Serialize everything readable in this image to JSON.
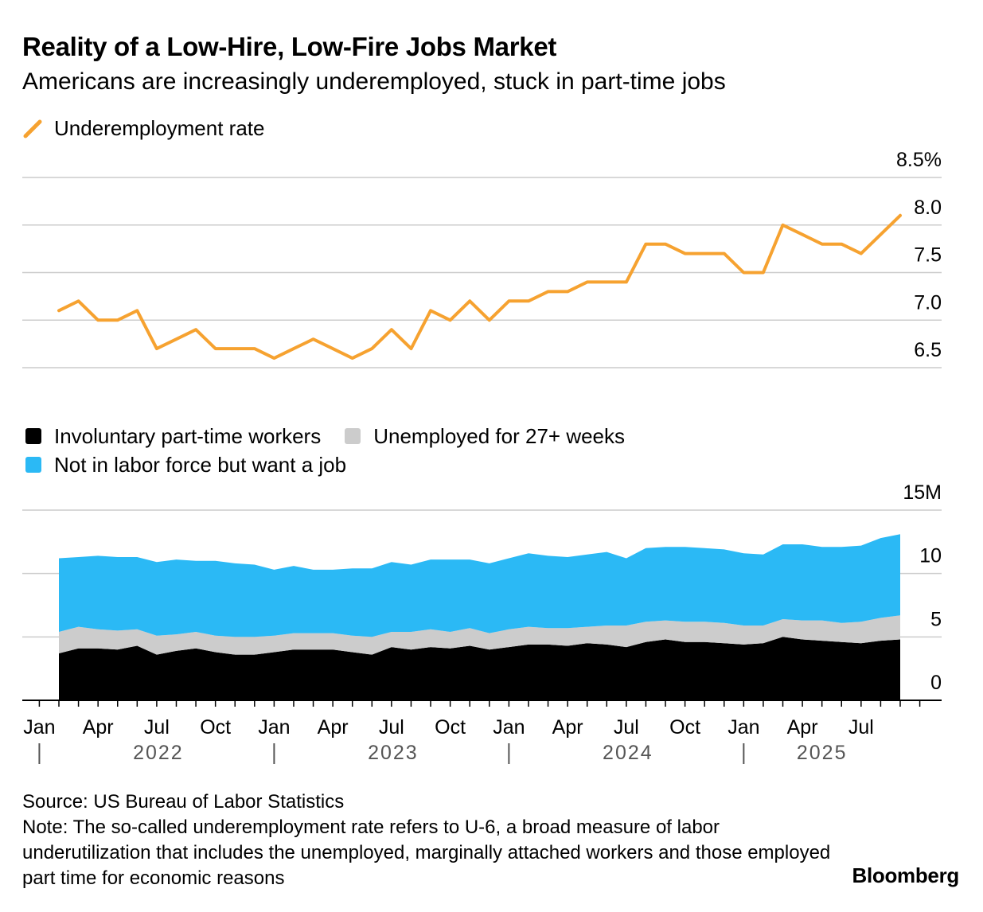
{
  "title": "Reality of a Low-Hire, Low-Fire Jobs Market",
  "subtitle": "Americans are increasingly underemployed, stuck in part-time jobs",
  "source": "Source: US Bureau of Labor Statistics",
  "note": "Note: The so-called underemployment rate refers to U-6, a broad measure of labor underutilization that includes the unemployed, marginally attached workers and those employed part time for economic reasons",
  "brand": "Bloomberg",
  "colors": {
    "line": "#f6a230",
    "involuntary": "#000000",
    "longterm": "#cccccc",
    "notinlf": "#2bb9f5",
    "grid": "#cccccc"
  },
  "chart_data": [
    {
      "type": "line",
      "legend": [
        "Underemployment rate"
      ],
      "ylim": [
        6.5,
        8.5
      ],
      "yticks": [
        "8.5%",
        "8.0",
        "7.5",
        "7.0",
        "6.5"
      ],
      "x": [
        "2022-02",
        "2022-03",
        "2022-04",
        "2022-05",
        "2022-06",
        "2022-07",
        "2022-08",
        "2022-09",
        "2022-10",
        "2022-11",
        "2022-12",
        "2023-01",
        "2023-02",
        "2023-03",
        "2023-04",
        "2023-05",
        "2023-06",
        "2023-07",
        "2023-08",
        "2023-09",
        "2023-10",
        "2023-11",
        "2023-12",
        "2024-01",
        "2024-02",
        "2024-03",
        "2024-04",
        "2024-05",
        "2024-06",
        "2024-07",
        "2024-08",
        "2024-09",
        "2024-10",
        "2024-11",
        "2024-12",
        "2025-01",
        "2025-02",
        "2025-03",
        "2025-04",
        "2025-05",
        "2025-06",
        "2025-07",
        "2025-08",
        "2025-09"
      ],
      "series": [
        {
          "name": "Underemployment rate",
          "values": [
            7.1,
            7.2,
            7.0,
            7.0,
            7.1,
            6.7,
            6.8,
            6.9,
            6.7,
            6.7,
            6.7,
            6.6,
            6.7,
            6.8,
            6.7,
            6.6,
            6.7,
            6.9,
            6.7,
            7.1,
            7.0,
            7.2,
            7.0,
            7.2,
            7.2,
            7.3,
            7.3,
            7.4,
            7.4,
            7.4,
            7.8,
            7.8,
            7.7,
            7.7,
            7.7,
            7.5,
            7.5,
            8.0,
            7.9,
            7.8,
            7.8,
            7.7,
            7.9,
            8.1
          ]
        }
      ]
    },
    {
      "type": "area",
      "stacked": true,
      "legend": [
        "Involuntary part-time workers",
        "Unemployed for 27+ weeks",
        "Not in labor force but want a job"
      ],
      "ylim": [
        0,
        15
      ],
      "yticks": [
        "15M",
        "10",
        "5",
        "0"
      ],
      "x_ticks": [
        "Jan",
        "Apr",
        "Jul",
        "Oct",
        "Jan",
        "Apr",
        "Jul",
        "Oct",
        "Jan",
        "Apr",
        "Jul",
        "Oct",
        "Jan",
        "Apr",
        "Jul"
      ],
      "years": [
        "2022",
        "2023",
        "2024",
        "2025"
      ],
      "series": [
        {
          "name": "Involuntary part-time workers",
          "values": [
            3.7,
            4.1,
            4.1,
            4.0,
            4.3,
            3.6,
            3.9,
            4.1,
            3.8,
            3.6,
            3.6,
            3.8,
            4.0,
            4.0,
            4.0,
            3.8,
            3.6,
            4.2,
            4.0,
            4.2,
            4.1,
            4.3,
            4.0,
            4.2,
            4.4,
            4.4,
            4.3,
            4.5,
            4.4,
            4.2,
            4.6,
            4.8,
            4.6,
            4.6,
            4.5,
            4.4,
            4.5,
            5.0,
            4.8,
            4.7,
            4.6,
            4.5,
            4.7,
            4.8
          ]
        },
        {
          "name": "Unemployed for 27+ weeks",
          "values": [
            1.7,
            1.7,
            1.5,
            1.5,
            1.3,
            1.5,
            1.3,
            1.3,
            1.3,
            1.4,
            1.4,
            1.3,
            1.3,
            1.3,
            1.3,
            1.3,
            1.4,
            1.2,
            1.4,
            1.4,
            1.3,
            1.4,
            1.3,
            1.4,
            1.4,
            1.3,
            1.4,
            1.3,
            1.5,
            1.7,
            1.6,
            1.5,
            1.6,
            1.6,
            1.6,
            1.5,
            1.4,
            1.4,
            1.5,
            1.6,
            1.5,
            1.7,
            1.8,
            1.9
          ]
        },
        {
          "name": "Not in labor force but want a job",
          "values": [
            5.8,
            5.5,
            5.8,
            5.8,
            5.7,
            5.8,
            5.9,
            5.6,
            5.9,
            5.8,
            5.7,
            5.2,
            5.3,
            5.0,
            5.0,
            5.3,
            5.4,
            5.5,
            5.3,
            5.5,
            5.7,
            5.4,
            5.5,
            5.6,
            5.8,
            5.7,
            5.6,
            5.7,
            5.8,
            5.3,
            5.8,
            5.8,
            5.9,
            5.8,
            5.8,
            5.7,
            5.6,
            5.9,
            6.0,
            5.8,
            6.0,
            6.0,
            6.3,
            6.4
          ]
        }
      ]
    }
  ]
}
